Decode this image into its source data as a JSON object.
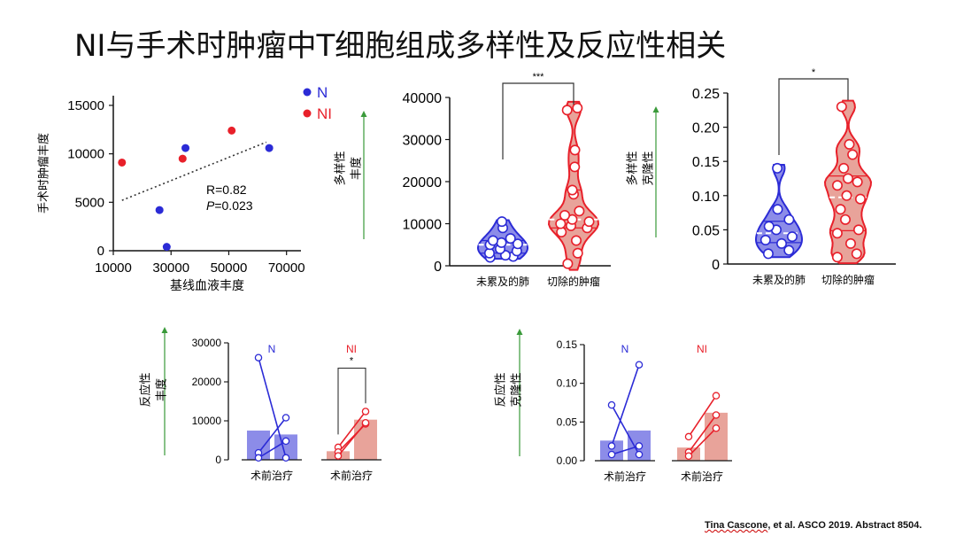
{
  "title": "NI与手术时肿瘤中T细胞组成多样性及反应性相关",
  "citation": {
    "author": "Tina Cascone",
    "rest": ", et al. ASCO 2019. Abstract 8504."
  },
  "colors": {
    "N": "#2b2bd6",
    "NI": "#e8202a",
    "arrow": "#3a9a3a",
    "N_fill": "#8c8ce8",
    "NI_fill": "#e8a39a"
  },
  "chart_data": [
    {
      "type": "scatter",
      "xlabel": "基线血液丰度",
      "ylabel": "手术时肿瘤丰度",
      "xlim": [
        10000,
        75000
      ],
      "ylim": [
        0,
        16000
      ],
      "xticks": [
        "10000",
        "30000",
        "50000",
        "70000"
      ],
      "yticks": [
        "0",
        "5000",
        "10000",
        "15000"
      ],
      "legend": [
        "N",
        "NI"
      ],
      "series": [
        {
          "name": "N",
          "x": [
            26000,
            35000,
            64000,
            28500
          ],
          "y": [
            4200,
            10600,
            10600,
            400
          ]
        },
        {
          "name": "NI",
          "x": [
            13000,
            34000,
            51000
          ],
          "y": [
            9100,
            9500,
            12400
          ]
        }
      ],
      "trend": {
        "x": [
          13000,
          63000
        ],
        "y": [
          5200,
          11200
        ]
      },
      "annotation": {
        "r": "R=0.82",
        "p_label": "P",
        "p_value": "=0.023"
      }
    },
    {
      "type": "violin",
      "ylabel": [
        "多样性",
        "丰度"
      ],
      "ylim": [
        0,
        40000
      ],
      "yticks": [
        "0",
        "10000",
        "20000",
        "30000",
        "40000"
      ],
      "categories": [
        "未累及的肺",
        "切除的肿瘤"
      ],
      "significance": "***",
      "groups": [
        {
          "name": "未累及的肺",
          "values": [
            2000,
            2200,
            2500,
            3000,
            3500,
            4000,
            5000,
            5200,
            5500,
            6000,
            6500,
            9000,
            10500
          ]
        },
        {
          "name": "切除的肿瘤",
          "values": [
            500,
            3000,
            6000,
            8000,
            9000,
            9500,
            10000,
            10500,
            11000,
            12000,
            13000,
            17000,
            18000,
            23500,
            27500,
            37000,
            37500
          ]
        }
      ]
    },
    {
      "type": "violin",
      "ylabel": [
        "多样性",
        "克隆性"
      ],
      "ylim": [
        0,
        0.25
      ],
      "yticks": [
        "0",
        "0.05",
        "0.10",
        "0.15",
        "0.20",
        "0.25"
      ],
      "categories": [
        "未累及的肺",
        "切除的肿瘤"
      ],
      "significance": "*",
      "groups": [
        {
          "name": "未累及的肺",
          "values": [
            0.015,
            0.02,
            0.03,
            0.035,
            0.04,
            0.05,
            0.055,
            0.065,
            0.08,
            0.14
          ]
        },
        {
          "name": "切除的肿瘤",
          "values": [
            0.01,
            0.015,
            0.03,
            0.045,
            0.05,
            0.065,
            0.08,
            0.095,
            0.1,
            0.115,
            0.12,
            0.125,
            0.14,
            0.16,
            0.175,
            0.23
          ]
        }
      ]
    },
    {
      "type": "bar",
      "ylabel": [
        "反应性",
        "丰度"
      ],
      "ylim": [
        0,
        30000
      ],
      "yticks": [
        "0",
        "10000",
        "20000",
        "30000"
      ],
      "xlabel": "术前治疗",
      "groups": [
        {
          "name": "N",
          "bars": [
            7500,
            6500
          ],
          "pairs": [
            [
              26200,
              500
            ],
            [
              1800,
              10800
            ],
            [
              500,
              4800
            ]
          ]
        },
        {
          "name": "NI",
          "bars": [
            2200,
            10300
          ],
          "pairs": [
            [
              3200,
              12400
            ],
            [
              2000,
              9200
            ],
            [
              1000,
              9500
            ]
          ],
          "significance": "*"
        }
      ]
    },
    {
      "type": "bar",
      "ylabel": [
        "反应性",
        "克隆性"
      ],
      "ylim": [
        0,
        0.15
      ],
      "yticks": [
        "0.00",
        "0.05",
        "0.10",
        "0.15"
      ],
      "xlabel": "术前治疗",
      "groups": [
        {
          "name": "N",
          "bars": [
            0.026,
            0.039
          ],
          "pairs": [
            [
              0.072,
              0.008
            ],
            [
              0.019,
              0.124
            ],
            [
              0.008,
              0.019
            ]
          ]
        },
        {
          "name": "NI",
          "bars": [
            0.017,
            0.062
          ],
          "pairs": [
            [
              0.031,
              0.084
            ],
            [
              0.011,
              0.059
            ],
            [
              0.006,
              0.042
            ]
          ]
        }
      ]
    }
  ]
}
